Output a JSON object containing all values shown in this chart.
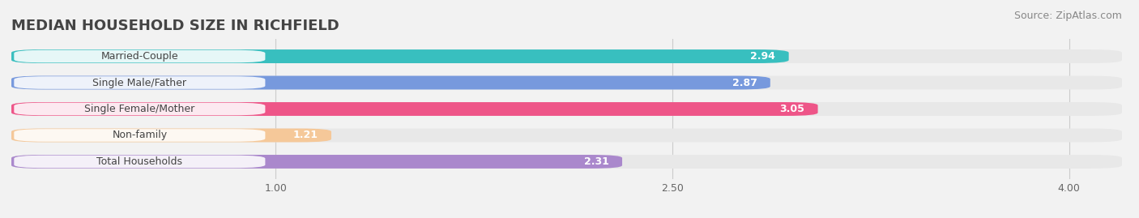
{
  "title": "MEDIAN HOUSEHOLD SIZE IN RICHFIELD",
  "source": "Source: ZipAtlas.com",
  "categories": [
    "Married-Couple",
    "Single Male/Father",
    "Single Female/Mother",
    "Non-family",
    "Total Households"
  ],
  "values": [
    2.94,
    2.87,
    3.05,
    1.21,
    2.31
  ],
  "bar_colors": [
    "#38bfbf",
    "#7799dd",
    "#ee5588",
    "#f5c899",
    "#aa88cc"
  ],
  "background_color": "#f2f2f2",
  "bar_background_color": "#e0e0e0",
  "row_background_color": "#e8e8e8",
  "xmin": 0.0,
  "xmax": 4.2,
  "xticks": [
    1.0,
    2.5,
    4.0
  ],
  "xtick_labels": [
    "1.00",
    "2.50",
    "4.00"
  ],
  "title_fontsize": 13,
  "label_fontsize": 9,
  "value_fontsize": 9,
  "source_fontsize": 9,
  "bar_height": 0.52
}
